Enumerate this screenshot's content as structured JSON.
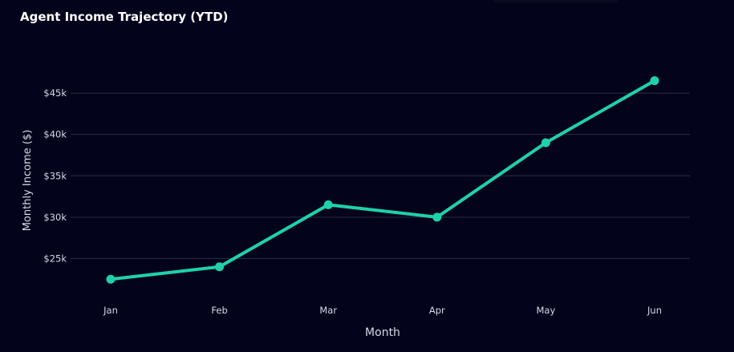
{
  "chart_data": {
    "type": "line",
    "title": "Agent Income Trajectory (YTD)",
    "xlabel": "Month",
    "ylabel": "Monthly Income ($)",
    "categories": [
      "Jan",
      "Feb",
      "Mar",
      "Apr",
      "May",
      "Jun"
    ],
    "series": [
      {
        "name": "Monthly Income",
        "values": [
          22500,
          24000,
          31500,
          30000,
          39000,
          46500
        ],
        "color": "#1fd1aa"
      }
    ],
    "yticks": [
      25000,
      30000,
      35000,
      40000,
      45000
    ],
    "ytick_labels": [
      "$25k",
      "$30k",
      "$35k",
      "$40k",
      "$45k"
    ],
    "ylim": [
      20000,
      48500
    ],
    "grid": true,
    "colors": {
      "background": "#03041c",
      "grid": "#2c2e48",
      "line": "#1fd1aa"
    }
  }
}
